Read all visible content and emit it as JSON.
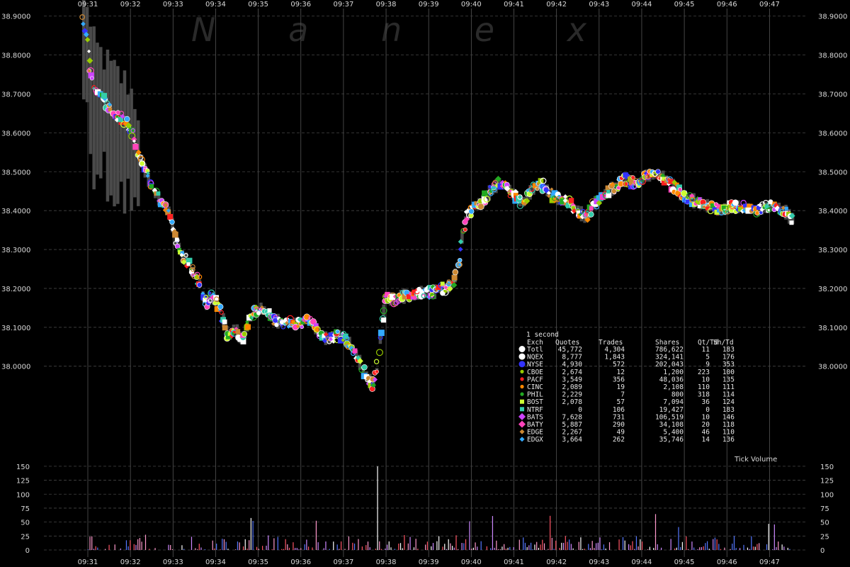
{
  "chart_data": {
    "type": "scatter",
    "watermark": "N a n e x",
    "grid": true,
    "x_ticks": [
      "09:31",
      "09:32",
      "09:33",
      "09:34",
      "09:35",
      "09:36",
      "09:37",
      "09:38",
      "09:39",
      "09:40",
      "09:41",
      "09:42",
      "09:43",
      "09:44",
      "09:45",
      "09:46",
      "09:47"
    ],
    "price_ticks": [
      "38.9000",
      "38.8000",
      "38.7000",
      "38.6000",
      "38.5000",
      "38.4000",
      "38.3000",
      "38.2000",
      "38.1000",
      "38.0000"
    ],
    "price_ylim": [
      37.83,
      38.905
    ],
    "volume_ticks": [
      "150",
      "125",
      "100",
      "75",
      "50",
      "25",
      "0"
    ],
    "volume_ylim": [
      0,
      160
    ],
    "volume_label": "Tick Volume",
    "price_path": [
      [
        30.9,
        38.9
      ],
      [
        31.0,
        38.82
      ],
      [
        31.05,
        38.76
      ],
      [
        31.15,
        38.72
      ],
      [
        31.3,
        38.7
      ],
      [
        31.55,
        38.66
      ],
      [
        31.75,
        38.64
      ],
      [
        31.95,
        38.62
      ],
      [
        32.1,
        38.58
      ],
      [
        32.25,
        38.53
      ],
      [
        32.45,
        38.47
      ],
      [
        32.65,
        38.43
      ],
      [
        32.9,
        38.4
      ],
      [
        33.05,
        38.33
      ],
      [
        33.2,
        38.29
      ],
      [
        33.4,
        38.26
      ],
      [
        33.6,
        38.22
      ],
      [
        33.75,
        38.16
      ],
      [
        33.9,
        38.18
      ],
      [
        34.1,
        38.15
      ],
      [
        34.3,
        38.07
      ],
      [
        34.45,
        38.1
      ],
      [
        34.6,
        38.07
      ],
      [
        34.9,
        38.14
      ],
      [
        35.1,
        38.15
      ],
      [
        35.35,
        38.12
      ],
      [
        35.6,
        38.11
      ],
      [
        35.9,
        38.11
      ],
      [
        36.2,
        38.12
      ],
      [
        36.4,
        38.09
      ],
      [
        36.6,
        38.07
      ],
      [
        36.9,
        38.08
      ],
      [
        37.15,
        38.06
      ],
      [
        37.3,
        38.03
      ],
      [
        37.5,
        37.98
      ],
      [
        37.7,
        37.95
      ],
      [
        37.8,
        38.0
      ],
      [
        37.9,
        38.12
      ],
      [
        38.0,
        38.18
      ],
      [
        38.15,
        38.17
      ],
      [
        38.35,
        38.18
      ],
      [
        38.6,
        38.18
      ],
      [
        38.85,
        38.19
      ],
      [
        39.1,
        38.19
      ],
      [
        39.35,
        38.2
      ],
      [
        39.55,
        38.21
      ],
      [
        39.7,
        38.26
      ],
      [
        39.8,
        38.35
      ],
      [
        39.9,
        38.39
      ],
      [
        40.05,
        38.41
      ],
      [
        40.25,
        38.42
      ],
      [
        40.45,
        38.45
      ],
      [
        40.65,
        38.47
      ],
      [
        40.85,
        38.46
      ],
      [
        41.0,
        38.44
      ],
      [
        41.2,
        38.42
      ],
      [
        41.4,
        38.45
      ],
      [
        41.6,
        38.47
      ],
      [
        41.8,
        38.45
      ],
      [
        42.0,
        38.43
      ],
      [
        42.3,
        38.42
      ],
      [
        42.5,
        38.4
      ],
      [
        42.7,
        38.38
      ],
      [
        42.9,
        38.42
      ],
      [
        43.1,
        38.44
      ],
      [
        43.35,
        38.46
      ],
      [
        43.6,
        38.48
      ],
      [
        43.85,
        38.47
      ],
      [
        44.1,
        38.49
      ],
      [
        44.35,
        38.49
      ],
      [
        44.6,
        38.48
      ],
      [
        44.85,
        38.45
      ],
      [
        45.1,
        38.43
      ],
      [
        45.35,
        38.42
      ],
      [
        45.6,
        38.41
      ],
      [
        45.85,
        38.4
      ],
      [
        46.1,
        38.41
      ],
      [
        46.4,
        38.41
      ],
      [
        46.7,
        38.4
      ],
      [
        46.95,
        38.41
      ],
      [
        47.15,
        38.41
      ],
      [
        47.35,
        38.4
      ],
      [
        47.5,
        38.38
      ]
    ],
    "series": [
      {
        "name": "Totl",
        "color": "#ffffff"
      },
      {
        "name": "NQEX",
        "color": "#ffffff"
      },
      {
        "name": "NYSE",
        "color": "#3333ff"
      },
      {
        "name": "CBOE",
        "color": "#99cc00"
      },
      {
        "name": "PACF",
        "color": "#ff2020"
      },
      {
        "name": "CINC",
        "color": "#ff8800"
      },
      {
        "name": "PHIL",
        "color": "#22aa22"
      },
      {
        "name": "BOST",
        "color": "#ccff33"
      },
      {
        "name": "NTRF",
        "color": "#33ccaa"
      },
      {
        "name": "BATS",
        "color": "#cc44ff"
      },
      {
        "name": "BATY",
        "color": "#ff44bb"
      },
      {
        "name": "EDGE",
        "color": "#cc8833"
      },
      {
        "name": "EDGX",
        "color": "#33aaff"
      }
    ]
  },
  "stats_table": {
    "title": "1 second",
    "headers": [
      "Exch",
      "Quotes",
      "Trades",
      "Shares",
      "Qt/Td",
      "Sh/Td"
    ],
    "rows": [
      {
        "exch": "Totl",
        "quotes": "45,772",
        "trades": "4,304",
        "shares": "786,622",
        "qt_td": "11",
        "sh_td": "183",
        "marker": "circle",
        "color": "#ffffff"
      },
      {
        "exch": "NQEX",
        "quotes": "8,777",
        "trades": "1,843",
        "shares": "324,141",
        "qt_td": "5",
        "sh_td": "176",
        "marker": "circle",
        "color": "#ffffff"
      },
      {
        "exch": "NYSE",
        "quotes": "4,930",
        "trades": "572",
        "shares": "202,043",
        "qt_td": "9",
        "sh_td": "353",
        "marker": "circle",
        "color": "#3333ff"
      },
      {
        "exch": "CBOE",
        "quotes": "2,674",
        "trades": "12",
        "shares": "1,200",
        "qt_td": "223",
        "sh_td": "100",
        "marker": "dot",
        "color": "#99cc00"
      },
      {
        "exch": "PACF",
        "quotes": "3,549",
        "trades": "356",
        "shares": "48,036",
        "qt_td": "10",
        "sh_td": "135",
        "marker": "dot",
        "color": "#ff2020"
      },
      {
        "exch": "CINC",
        "quotes": "2,089",
        "trades": "19",
        "shares": "2,108",
        "qt_td": "110",
        "sh_td": "111",
        "marker": "dot",
        "color": "#ff8800"
      },
      {
        "exch": "PHIL",
        "quotes": "2,229",
        "trades": "7",
        "shares": "800",
        "qt_td": "318",
        "sh_td": "114",
        "marker": "dot",
        "color": "#22aa22"
      },
      {
        "exch": "BOST",
        "quotes": "2,078",
        "trades": "57",
        "shares": "7,094",
        "qt_td": "36",
        "sh_td": "124",
        "marker": "square",
        "color": "#ccff33"
      },
      {
        "exch": "NTRF",
        "quotes": "0",
        "trades": "106",
        "shares": "19,427",
        "qt_td": "0",
        "sh_td": "183",
        "marker": "square",
        "color": "#33ccaa"
      },
      {
        "exch": "BATS",
        "quotes": "7,628",
        "trades": "731",
        "shares": "106,519",
        "qt_td": "10",
        "sh_td": "146",
        "marker": "diamond",
        "color": "#cc44ff"
      },
      {
        "exch": "BATY",
        "quotes": "5,887",
        "trades": "290",
        "shares": "34,108",
        "qt_td": "20",
        "sh_td": "118",
        "marker": "diamond",
        "color": "#ff44bb"
      },
      {
        "exch": "EDGE",
        "quotes": "2,267",
        "trades": "49",
        "shares": "5,400",
        "qt_td": "46",
        "sh_td": "110",
        "marker": "diamond-small",
        "color": "#cc8833"
      },
      {
        "exch": "EDGX",
        "quotes": "3,664",
        "trades": "262",
        "shares": "35,746",
        "qt_td": "14",
        "sh_td": "136",
        "marker": "diamond-small",
        "color": "#33aaff"
      }
    ]
  }
}
